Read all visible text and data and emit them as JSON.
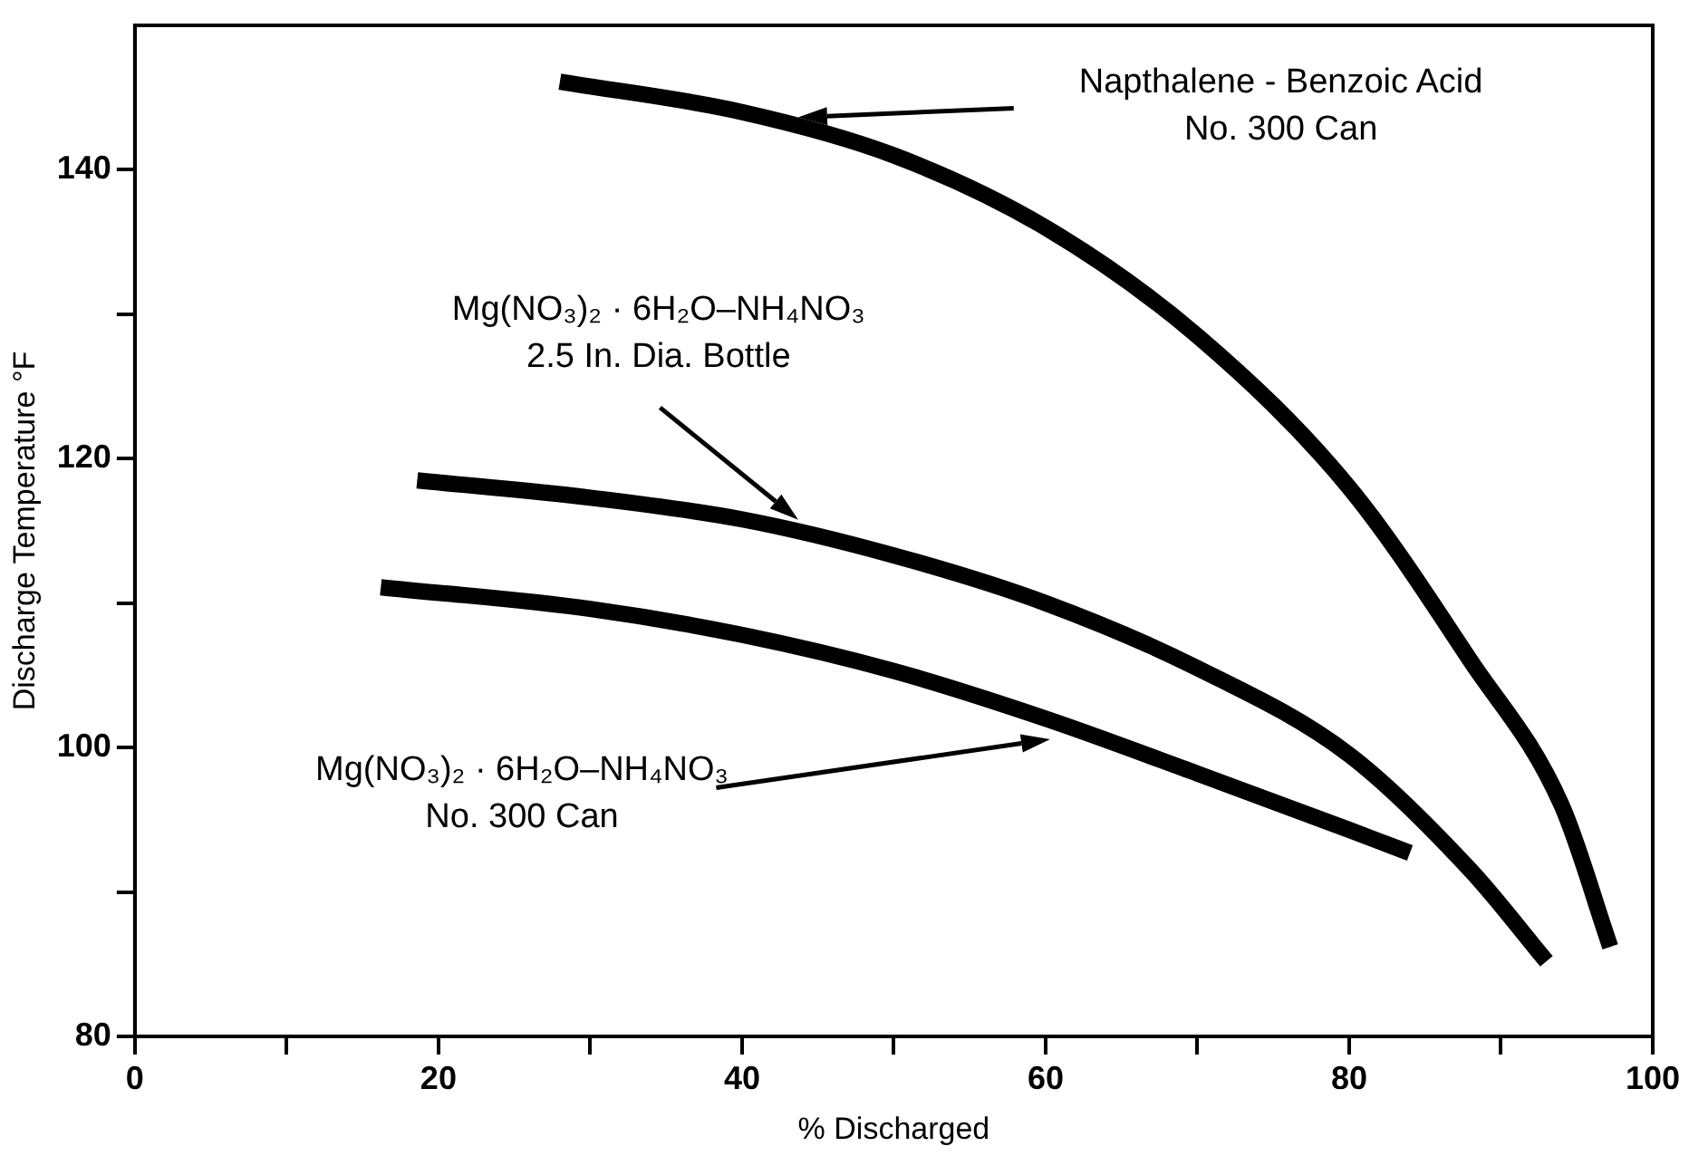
{
  "chart_data": {
    "type": "line",
    "xlabel": "% Discharged",
    "ylabel": "Discharge Temperature °F",
    "xlim": [
      0,
      100
    ],
    "ylim": [
      80,
      150
    ],
    "xticks": [
      0,
      {
        "value": 10,
        "label": null
      },
      20,
      {
        "value": 30,
        "label": null
      },
      40,
      {
        "value": 50,
        "label": null
      },
      60,
      {
        "value": 70,
        "label": null
      },
      80,
      {
        "value": 90,
        "label": null
      },
      100
    ],
    "yticks": [
      80,
      {
        "value": 90,
        "label": null
      },
      100,
      {
        "value": 110,
        "label": null
      },
      120,
      {
        "value": 130,
        "label": null
      },
      140
    ],
    "grid": false,
    "legend": false,
    "marker": "none",
    "line_style": "solid",
    "series": [
      {
        "color": "#000000",
        "x": [
          28,
          40,
          50,
          60,
          70,
          80,
          88,
          94,
          97.2
        ],
        "values": [
          146.1,
          144,
          141,
          136,
          128.5,
          118,
          106,
          96,
          86.2
        ]
      },
      {
        "color": "#000000",
        "x": [
          18.6,
          30,
          40,
          50,
          60,
          70,
          80,
          88,
          93
        ],
        "values": [
          118.5,
          117.3,
          115.8,
          113.3,
          110,
          105.5,
          99.5,
          91.5,
          85.2
        ]
      },
      {
        "color": "#000000",
        "x": [
          16.2,
          30,
          40,
          50,
          60,
          70,
          80,
          84
        ],
        "values": [
          111.1,
          109.6,
          107.8,
          105.3,
          102,
          98.2,
          94.3,
          92.7
        ]
      }
    ],
    "annotations": [
      "Napthalene - Benzoic Acid\nNo. 300 Can",
      "Mg(NO₃)₂ · 6H₂O–NH₄NO₃\n2.5 In. Dia. Bottle",
      "Mg(NO₃)₂ · 6H₂O–NH₄NO₃\nNo. 300 Can"
    ]
  }
}
